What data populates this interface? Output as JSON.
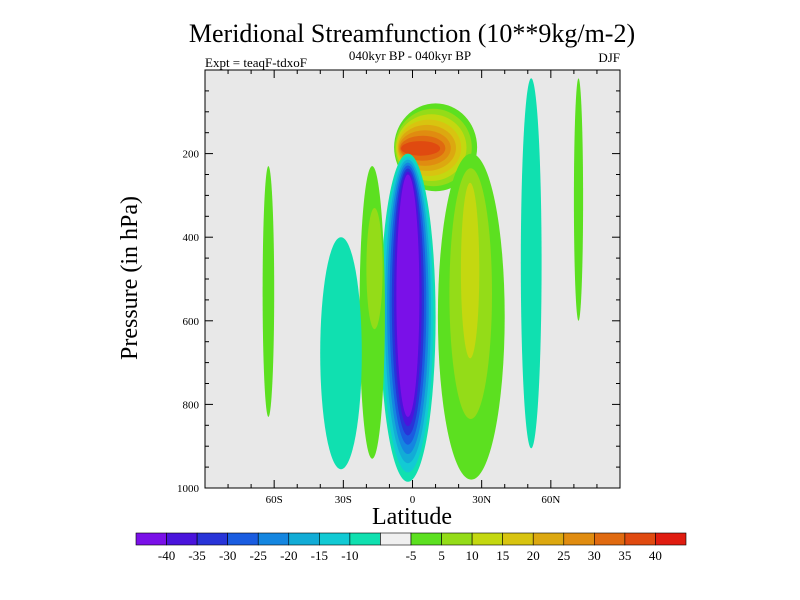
{
  "chart_data": {
    "type": "contour",
    "title": "Meridional Streamfunction (10**9kg/m-2)",
    "subtitle": "040kyr BP - 040kyr BP",
    "left_label": "Expt = teaqF-tdxoF",
    "right_label": "DJF",
    "xlabel": "Latitude",
    "ylabel": "Pressure (in hPa)",
    "xlim": [
      -90,
      90
    ],
    "ylim": [
      0,
      1000
    ],
    "y_reversed": true,
    "x_ticks": [
      {
        "value": -60,
        "label": "60S"
      },
      {
        "value": -30,
        "label": "30S"
      },
      {
        "value": 0,
        "label": "0"
      },
      {
        "value": 30,
        "label": "30N"
      },
      {
        "value": 60,
        "label": "60N"
      }
    ],
    "y_ticks": [
      {
        "value": 200,
        "label": "200"
      },
      {
        "value": 400,
        "label": "400"
      },
      {
        "value": 600,
        "label": "600"
      },
      {
        "value": 800,
        "label": "800"
      },
      {
        "value": 1000,
        "label": "1000"
      }
    ],
    "background_color": "#e8e8e8",
    "colorbar": {
      "colors": [
        "#7a10e8",
        "#4a14dc",
        "#2834d8",
        "#1a5ce0",
        "#1486e0",
        "#12acd6",
        "#12cad4",
        "#10e0b0",
        "#f0f0f0",
        "#5ce020",
        "#94dc18",
        "#c4d810",
        "#d8c410",
        "#dca810",
        "#e08c10",
        "#e06a10",
        "#e04a10",
        "#e01c10"
      ],
      "labels": [
        "-40",
        "-35",
        "-30",
        "-25",
        "-20",
        "-15",
        "-10",
        "-5",
        "5",
        "10",
        "15",
        "20",
        "25",
        "30",
        "35",
        "40"
      ]
    },
    "features": [
      {
        "name": "northern-upper-cell",
        "level": 40,
        "lat_range": [
          -5,
          12
        ],
        "p_range": [
          170,
          205
        ]
      },
      {
        "name": "northern-upper-cell-shell",
        "level": 5,
        "lat_range": [
          -8,
          28
        ],
        "p_range": [
          80,
          290
        ]
      },
      {
        "name": "equatorial-deep-cell",
        "level": -40,
        "lat_range": [
          -7,
          3
        ],
        "p_range": [
          250,
          830
        ]
      },
      {
        "name": "equatorial-deep-cell-shell",
        "level": -5,
        "lat_range": [
          -14,
          10
        ],
        "p_range": [
          200,
          985
        ]
      },
      {
        "name": "northern-tropical-cell",
        "level": 15,
        "lat_range": [
          21,
          29
        ],
        "p_range": [
          270,
          690
        ]
      },
      {
        "name": "northern-tropical-cell-shell",
        "level": 5,
        "lat_range": [
          11,
          40
        ],
        "p_range": [
          200,
          980
        ]
      },
      {
        "name": "southern-subtropical-cell",
        "level": 10,
        "lat_range": [
          -20,
          -13
        ],
        "p_range": [
          330,
          620
        ]
      },
      {
        "name": "southern-subtropical-cell-shell",
        "level": 5,
        "lat_range": [
          -23,
          -12
        ],
        "p_range": [
          230,
          930
        ]
      },
      {
        "name": "southern-midlat-cell",
        "level": -5,
        "lat_range": [
          -40,
          -22
        ],
        "p_range": [
          400,
          955
        ]
      },
      {
        "name": "southern-highlat-band",
        "level": 5,
        "lat_range": [
          -65,
          -60
        ],
        "p_range": [
          230,
          830
        ]
      },
      {
        "name": "northern-midlat-band",
        "level": -5,
        "lat_range": [
          47,
          56
        ],
        "p_range": [
          20,
          905
        ]
      },
      {
        "name": "northern-highlat-band",
        "level": 5,
        "lat_range": [
          70,
          74
        ],
        "p_range": [
          20,
          600
        ]
      }
    ]
  }
}
